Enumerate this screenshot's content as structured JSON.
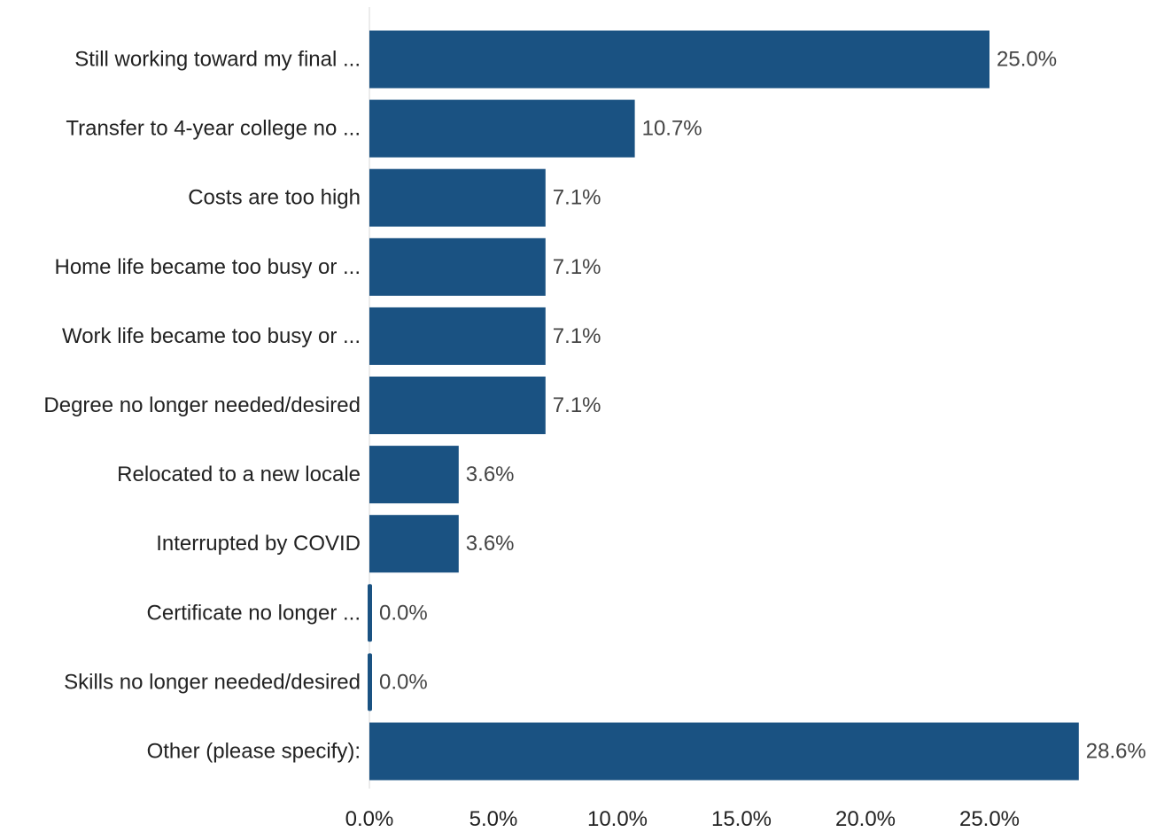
{
  "chart_data": {
    "type": "bar",
    "orientation": "horizontal",
    "categories": [
      "Still working toward my final ...",
      "Transfer to 4-year college no ...",
      "Costs are too high",
      "Home life became too busy or ...",
      "Work life became too busy or ...",
      "Degree no longer needed/desired",
      "Relocated to a new locale",
      "Interrupted by COVID",
      "Certificate no longer ...",
      "Skills no longer needed/desired",
      "Other (please specify):"
    ],
    "values": [
      25.0,
      10.7,
      7.1,
      7.1,
      7.1,
      7.1,
      3.6,
      3.6,
      0.0,
      0.0,
      28.6
    ],
    "value_labels": [
      "25.0%",
      "10.7%",
      "7.1%",
      "7.1%",
      "7.1%",
      "7.1%",
      "3.6%",
      "3.6%",
      "0.0%",
      "0.0%",
      "28.6%"
    ],
    "x_ticks": [
      0,
      5,
      10,
      15,
      20,
      25
    ],
    "x_tick_labels": [
      "0.0%",
      "5.0%",
      "10.0%",
      "15.0%",
      "20.0%",
      "25.0%"
    ],
    "xlim": [
      0,
      28.6
    ],
    "bar_color": "#1a5282",
    "grid": false,
    "legend": "none"
  }
}
